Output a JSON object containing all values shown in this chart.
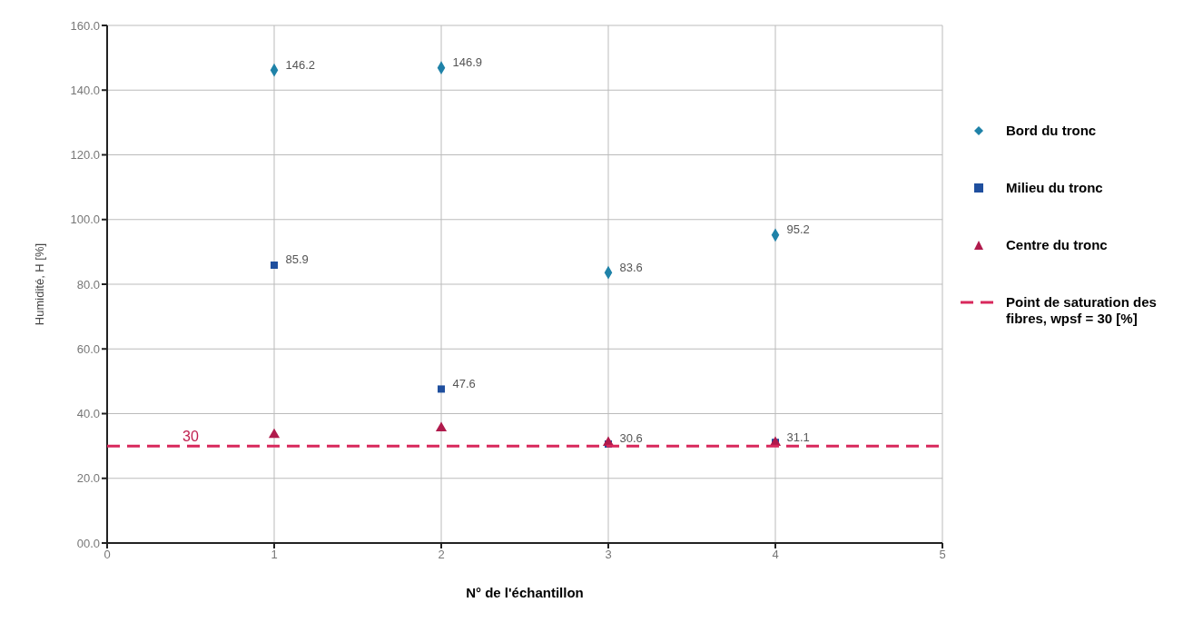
{
  "chart_data": {
    "type": "scatter",
    "xlabel": "N° de l'échantillon",
    "ylabel": "Humidité, H [%]",
    "x": [
      1,
      2,
      3,
      4
    ],
    "xlim": [
      0,
      5
    ],
    "xticks": [
      0,
      1,
      2,
      3,
      4,
      5
    ],
    "ylim": [
      0,
      160
    ],
    "yticks": [
      {
        "value": 0,
        "label": "00.0"
      },
      {
        "value": 20,
        "label": "20.0"
      },
      {
        "value": 40,
        "label": "40.0"
      },
      {
        "value": 60,
        "label": "60.0"
      },
      {
        "value": 80,
        "label": "80.0"
      },
      {
        "value": 100,
        "label": "100.0"
      },
      {
        "value": 120,
        "label": "120.0"
      },
      {
        "value": 140,
        "label": "140.0"
      },
      {
        "value": 160,
        "label": "160.0"
      }
    ],
    "grid": true,
    "legend": "right",
    "series": [
      {
        "name": "Bord du tronc",
        "color": "#1f82a8",
        "marker": "diamond",
        "values": [
          146.2,
          146.9,
          83.6,
          95.2
        ],
        "value_labels": [
          "146.2",
          "146.9",
          "83.6",
          "95.2"
        ]
      },
      {
        "name": "Milieu du tronc",
        "color": "#1f4f9e",
        "marker": "square",
        "values": [
          85.9,
          47.6,
          30.6,
          31.1
        ],
        "value_labels": [
          "85.9",
          "47.6",
          "30.6",
          "31.1"
        ]
      },
      {
        "name": "Centre du tronc",
        "color": "#b01a4c",
        "marker": "triangle",
        "values": [
          33.5,
          35.5,
          31,
          31
        ]
      },
      {
        "name": "Point de saturation des fibres, wpsf = 30 [%]",
        "type": "line",
        "color": "#d8285c",
        "line_style": "dashed",
        "x": [
          0,
          5
        ],
        "values": [
          30,
          30
        ]
      }
    ],
    "annotations": [
      {
        "text": "30",
        "x": 0.5,
        "y": 30
      }
    ]
  }
}
